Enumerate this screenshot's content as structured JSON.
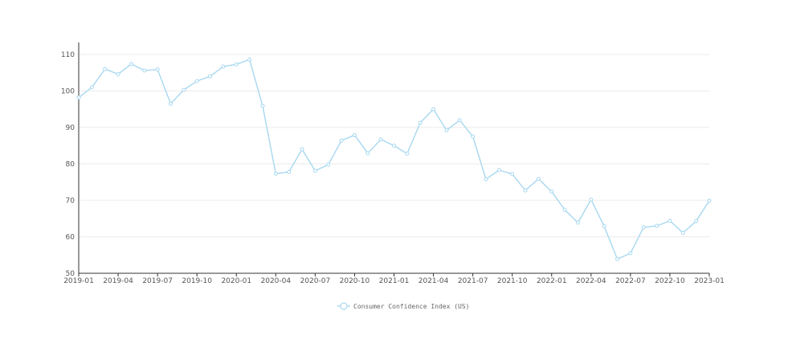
{
  "chart_data": {
    "type": "line",
    "title": "",
    "xlabel": "",
    "ylabel": "",
    "ylim": [
      50,
      110
    ],
    "yticks": [
      50,
      60,
      70,
      80,
      90,
      100,
      110
    ],
    "grid": true,
    "legend_position": "bottom-center",
    "colors": {
      "line": "#a8d8f0",
      "grid": "#ebebeb",
      "axis": "#333333"
    },
    "x": [
      "2019-01",
      "2019-02",
      "2019-03",
      "2019-04",
      "2019-05",
      "2019-06",
      "2019-07",
      "2019-08",
      "2019-09",
      "2019-10",
      "2019-11",
      "2019-12",
      "2020-01",
      "2020-02",
      "2020-03",
      "2020-04",
      "2020-05",
      "2020-06",
      "2020-07",
      "2020-08",
      "2020-09",
      "2020-10",
      "2020-11",
      "2020-12",
      "2021-01",
      "2021-02",
      "2021-03",
      "2021-04",
      "2021-05",
      "2021-06",
      "2021-07",
      "2021-08",
      "2021-09",
      "2021-10",
      "2021-11",
      "2021-12",
      "2022-01",
      "2022-02",
      "2022-03",
      "2022-04",
      "2022-05",
      "2022-06",
      "2022-07",
      "2022-08",
      "2022-09",
      "2022-10",
      "2022-11",
      "2022-12",
      "2023-01"
    ],
    "xtick_labels": [
      "2019-01",
      "2019-04",
      "2019-07",
      "2019-10",
      "2020-01",
      "2020-04",
      "2020-07",
      "2020-10",
      "2021-01",
      "2021-04",
      "2021-07",
      "2021-10",
      "2022-01",
      "2022-04",
      "2022-07",
      "2022-10",
      "2023-01"
    ],
    "series": [
      {
        "name": "Consumer Confidence Index (US)",
        "values": [
          98.2,
          101.0,
          106.0,
          104.6,
          107.4,
          105.6,
          105.9,
          96.5,
          100.3,
          102.7,
          104.0,
          106.7,
          107.3,
          108.6,
          95.9,
          77.3,
          77.8,
          84.0,
          78.1,
          79.8,
          86.4,
          87.9,
          82.9,
          86.7,
          85.0,
          82.8,
          91.3,
          95.0,
          89.2,
          92.0,
          87.5,
          75.8,
          78.3,
          77.2,
          72.7,
          75.9,
          72.4,
          67.4,
          63.9,
          70.2,
          62.9,
          53.9,
          55.5,
          62.6,
          63.0,
          64.4,
          61.1,
          64.3,
          69.9
        ]
      }
    ]
  }
}
